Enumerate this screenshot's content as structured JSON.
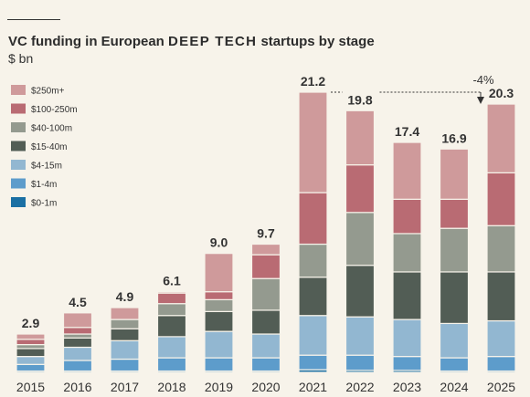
{
  "header": {
    "title_prefix": "VC funding in European",
    "title_highlight": "DEEP TECH",
    "title_suffix": "startups by stage",
    "subtitle": "$ bn"
  },
  "chart_data": {
    "type": "bar",
    "stacked": true,
    "title": "VC funding in European DEEP TECH startups by stage",
    "ylabel": "$ bn",
    "categories": [
      "2015",
      "2016",
      "2017",
      "2018",
      "2019",
      "2020",
      "2021",
      "2022",
      "2023",
      "2024",
      "2025"
    ],
    "totals": [
      "2.9",
      "4.5",
      "4.9",
      "6.1",
      "9.0",
      "9.7",
      "21.2",
      "19.8",
      "17.4",
      "16.9",
      "20.3"
    ],
    "ylim": [
      0,
      21.2
    ],
    "series": [
      {
        "name": "$0-1m",
        "color": "#1a6fa3",
        "values": [
          0.1,
          0.1,
          0.1,
          0.1,
          0.1,
          0.1,
          0.2,
          0.15,
          0.15,
          0.1,
          0.1
        ]
      },
      {
        "name": "$1-4m",
        "color": "#5d9ccb",
        "values": [
          0.5,
          0.8,
          0.9,
          1.0,
          1.0,
          1.0,
          1.1,
          1.15,
          1.05,
          1.0,
          1.1
        ]
      },
      {
        "name": "$4-15m",
        "color": "#92b7d1",
        "values": [
          0.6,
          1.0,
          1.4,
          1.6,
          2.0,
          1.8,
          3.0,
          2.9,
          2.8,
          2.6,
          2.7
        ]
      },
      {
        "name": "$15-40m",
        "color": "#525d55",
        "values": [
          0.6,
          0.7,
          0.9,
          1.6,
          1.5,
          1.8,
          2.9,
          3.9,
          3.6,
          3.9,
          3.7
        ]
      },
      {
        "name": "$40-100m",
        "color": "#949a8f",
        "values": [
          0.3,
          0.3,
          0.7,
          0.9,
          0.9,
          2.4,
          2.5,
          4.0,
          2.9,
          3.3,
          3.5
        ]
      },
      {
        "name": "$100-250m",
        "color": "#b96b73",
        "values": [
          0.4,
          0.5,
          0.0,
          0.8,
          0.6,
          1.8,
          3.9,
          3.6,
          2.6,
          2.2,
          4.0
        ]
      },
      {
        "name": "$250m+",
        "color": "#cf9a9b",
        "values": [
          0.4,
          1.1,
          0.9,
          0.1,
          2.9,
          0.8,
          7.6,
          4.1,
          4.3,
          3.8,
          5.2
        ]
      }
    ],
    "annotation": {
      "text": "-4%",
      "from": "2021",
      "to": "2025"
    },
    "legend_position": "top-left"
  }
}
